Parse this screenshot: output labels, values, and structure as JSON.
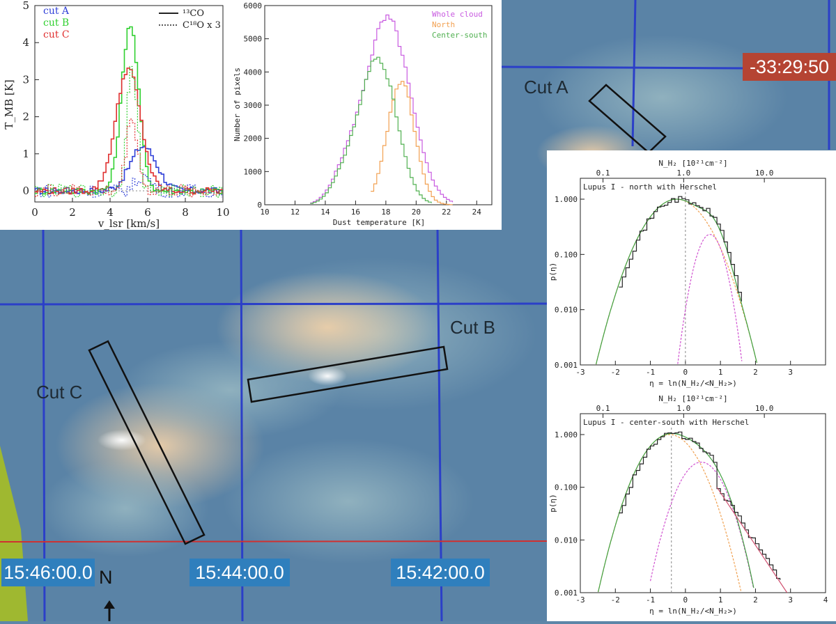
{
  "map": {
    "coordinate_labels": {
      "ra_left": "15:46:00.0",
      "ra_middle": "15:44:00.0",
      "ra_right": "15:42:00.0",
      "dec": "-33:29:50"
    },
    "cuts": [
      "Cut A",
      "Cut B",
      "Cut C"
    ],
    "north_label": "N",
    "colors": {
      "grid": "#2b3fc8",
      "ra_line": "#d03030",
      "box": "#111111",
      "label_bg": "#2f7fbd",
      "dec_bg": "#b54433"
    }
  },
  "chart_data": [
    {
      "type": "line",
      "title": "",
      "xlabel": "v_lsr [km/s]",
      "ylabel": "T_MB [K]",
      "xlim": [
        0,
        10
      ],
      "ylim": [
        -0.3,
        5
      ],
      "xticks": [
        0,
        2,
        4,
        6,
        8,
        10
      ],
      "yticks": [
        0,
        1,
        2,
        3,
        4,
        5
      ],
      "legend_cuts": [
        "cut A",
        "cut B",
        "cut C"
      ],
      "legend_lines": [
        "¹³CO",
        "C¹⁸O x 3"
      ],
      "colors": {
        "A": "#3040d8",
        "B": "#30d030",
        "C": "#e03030"
      },
      "series": [
        {
          "name": "cut A",
          "line": "13CO",
          "center": 5.7,
          "amplitude": 1.2,
          "width": 0.7
        },
        {
          "name": "cut B",
          "line": "13CO",
          "center": 5.0,
          "amplitude": 4.5,
          "width": 0.45
        },
        {
          "name": "cut C",
          "line": "13CO",
          "center": 4.9,
          "amplitude": 3.3,
          "width": 0.65
        },
        {
          "name": "cut A",
          "line": "C18O x 3",
          "center": 5.7,
          "amplitude": 0.4,
          "width": 0.4
        },
        {
          "name": "cut B",
          "line": "C18O x 3",
          "center": 5.1,
          "amplitude": 3.3,
          "width": 0.28
        },
        {
          "name": "cut C",
          "line": "C18O x 3",
          "center": 5.1,
          "amplitude": 2.0,
          "width": 0.3
        }
      ]
    },
    {
      "type": "bar",
      "title": "",
      "xlabel": "Dust temperature [K]",
      "ylabel": "Number of pixels",
      "xlim": [
        10,
        25
      ],
      "ylim": [
        0,
        6000
      ],
      "xticks": [
        10,
        12,
        14,
        16,
        18,
        20,
        22,
        24
      ],
      "yticks": [
        0,
        1000,
        2000,
        3000,
        4000,
        5000,
        6000
      ],
      "legend": [
        "Whole cloud",
        "North",
        "Center-south"
      ],
      "colors": {
        "Whole cloud": "#c85ae0",
        "North": "#f2a050",
        "Center-south": "#50b050"
      },
      "series": [
        {
          "name": "Whole cloud",
          "peak_x": 18.0,
          "peak_y": 5600,
          "x_range": [
            13.0,
            22.5
          ]
        },
        {
          "name": "North",
          "peak_x": 18.9,
          "peak_y": 3700,
          "x_range": [
            17.0,
            22.5
          ]
        },
        {
          "name": "Center-south",
          "peak_x": 17.4,
          "peak_y": 4400,
          "x_range": [
            13.0,
            21.0
          ]
        }
      ]
    },
    {
      "type": "line",
      "title": "Lupus I - north with Herschel",
      "xlabel": "η = ln(N_H₂/<N_H₂>)",
      "ylabel": "p(η)",
      "top_axis_label": "N_H₂ [10²¹cm⁻²]",
      "top_ticks": [
        "0.1",
        "1.0",
        "10.0"
      ],
      "xlim": [
        -3,
        4
      ],
      "ylim_log": [
        0.001,
        1.0
      ],
      "xticks": [
        -3,
        -2,
        -1,
        0,
        1,
        2,
        3
      ],
      "yticks": [
        "0.001",
        "0.010",
        "0.100",
        "1.000"
      ],
      "colors": {
        "hist": "#222222",
        "lognormal": "#40a040",
        "component1": "#f0a050",
        "component2": "#d050d0"
      },
      "components": [
        {
          "name": "component1",
          "mu": -0.25,
          "sigma": 0.62,
          "amp": 1.0
        },
        {
          "name": "component2",
          "mu": 0.7,
          "sigma": 0.28,
          "amp": 0.23
        }
      ],
      "vline_eta": 0.0
    },
    {
      "type": "line",
      "title": "Lupus I - center-south with Herschel",
      "xlabel": "η = ln(N_H₂/<N_H₂>)",
      "ylabel": "p(η)",
      "top_axis_label": "N_H₂ [10²¹cm⁻²]",
      "top_ticks": [
        "0.1",
        "1.0",
        "10.0"
      ],
      "xlim": [
        -3,
        4
      ],
      "ylim_log": [
        0.001,
        1.0
      ],
      "xticks": [
        -3,
        -2,
        -1,
        0,
        1,
        2,
        3,
        4
      ],
      "yticks": [
        "0.001",
        "0.010",
        "0.100",
        "1.000"
      ],
      "colors": {
        "hist": "#222222",
        "lognormal": "#40a040",
        "component1": "#f0a050",
        "component2": "#d050d0",
        "powerlaw": "#d05070"
      },
      "components": [
        {
          "name": "component1",
          "mu": -0.45,
          "sigma": 0.55,
          "amp": 1.0
        },
        {
          "name": "component2",
          "mu": 0.45,
          "sigma": 0.45,
          "amp": 0.3
        }
      ],
      "powerlaw": {
        "eta_range": [
          0.9,
          2.9
        ],
        "p_range": [
          0.1,
          0.001
        ]
      },
      "vline_eta": -0.4
    }
  ]
}
